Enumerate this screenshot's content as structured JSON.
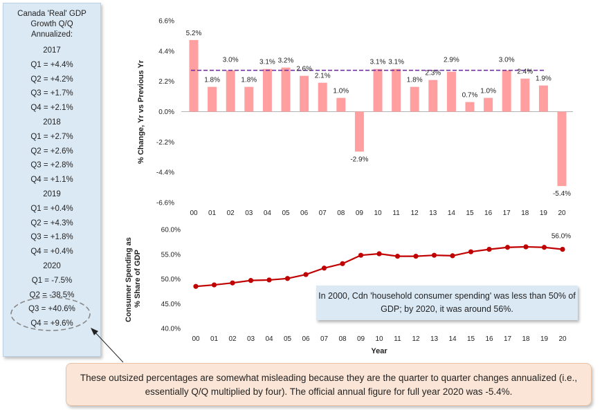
{
  "side_panel": {
    "title_lines": [
      "Canada 'Real' GDP",
      "Growth Q/Q",
      "Annualized:"
    ],
    "years": [
      {
        "year": "2017",
        "quarters": [
          "Q1 = +4.4%",
          "Q2 = +4.2%",
          "Q3 = +1.7%",
          "Q4 = +2.1%"
        ]
      },
      {
        "year": "2018",
        "quarters": [
          "Q1 = +2.7%",
          "Q2 = +2.6%",
          "Q3 = +2.8%",
          "Q4 = +1.1%"
        ]
      },
      {
        "year": "2019",
        "quarters": [
          "Q1 = +0.4%",
          "Q2 = +4.3%",
          "Q3 = +1.8%",
          "Q4 = +0.4%"
        ]
      },
      {
        "year": "2020",
        "quarters": [
          "Q1 = -7.5%",
          "Q2 = -38.5%",
          "Q3 = +40.6%",
          "Q4 = +9.6%"
        ]
      }
    ]
  },
  "chart_data": [
    {
      "type": "bar",
      "categories": [
        "00",
        "01",
        "02",
        "03",
        "04",
        "05",
        "06",
        "07",
        "08",
        "09",
        "10",
        "11",
        "12",
        "13",
        "14",
        "15",
        "16",
        "17",
        "18",
        "19",
        "20"
      ],
      "values": [
        5.2,
        1.8,
        3.0,
        1.8,
        3.1,
        3.2,
        2.6,
        2.1,
        1.0,
        -2.9,
        3.1,
        3.1,
        1.8,
        2.3,
        2.9,
        0.7,
        1.0,
        3.0,
        2.4,
        1.9,
        -5.4
      ],
      "labels": [
        "5.2%",
        "1.8%",
        "3.0%",
        "1.8%",
        "3.1%",
        "3.2%",
        "2.6%",
        "2.1%",
        "1.0%",
        "-2.9%",
        "3.1%",
        "3.1%",
        "1.8%",
        "2.3%",
        "2.9%",
        "0.7%",
        "1.0%",
        "3.0%",
        "2.4%",
        "1.9%",
        "-5.4%"
      ],
      "ylabel": "% Change, Yr vs Previous Yr",
      "xlabel": "",
      "ylim": [
        -6.6,
        6.6
      ],
      "yticks": [
        6.6,
        4.4,
        2.2,
        0.0,
        -2.2,
        -4.4,
        -6.6
      ],
      "yticklabels": [
        "6.6%",
        "4.4%",
        "2.2%",
        "0.0%",
        "-2.2%",
        "-4.4%",
        "-6.6%"
      ],
      "reference_line": {
        "value": 3.0,
        "from": "00",
        "to": "19",
        "style": "dashed",
        "color": "#7030a0"
      },
      "bar_color": "#ff9f9f"
    },
    {
      "type": "line",
      "x": [
        "00",
        "01",
        "02",
        "03",
        "04",
        "05",
        "06",
        "07",
        "08",
        "09",
        "10",
        "11",
        "12",
        "13",
        "14",
        "15",
        "16",
        "17",
        "18",
        "19",
        "20"
      ],
      "values": [
        48.5,
        48.8,
        49.2,
        49.7,
        49.8,
        50.1,
        50.9,
        52.2,
        53.1,
        54.8,
        55.1,
        54.6,
        54.6,
        54.8,
        54.7,
        55.5,
        56.0,
        56.4,
        56.5,
        56.4,
        56.0
      ],
      "end_label": "56.0%",
      "ylabel": "Consumer Spending as % Share of GDP",
      "xlabel": "Year",
      "ylim": [
        40.0,
        60.0
      ],
      "yticks": [
        60.0,
        55.0,
        50.0,
        45.0,
        40.0
      ],
      "yticklabels": [
        "60.0%",
        "55.0%",
        "50.0%",
        "45.0%",
        "40.0%"
      ],
      "line_color": "#c00000"
    }
  ],
  "annotation": {
    "text": "In 2000, Cdn 'household consumer spending' was less than 50% of GDP; by 2020, it was around 56%."
  },
  "note": {
    "text": "These outsized percentages are somewhat misleading because they are the quarter to quarter changes annualized (i.e., essentially Q/Q multiplied by four). The official annual figure for full year 2020 was -5.4%."
  }
}
